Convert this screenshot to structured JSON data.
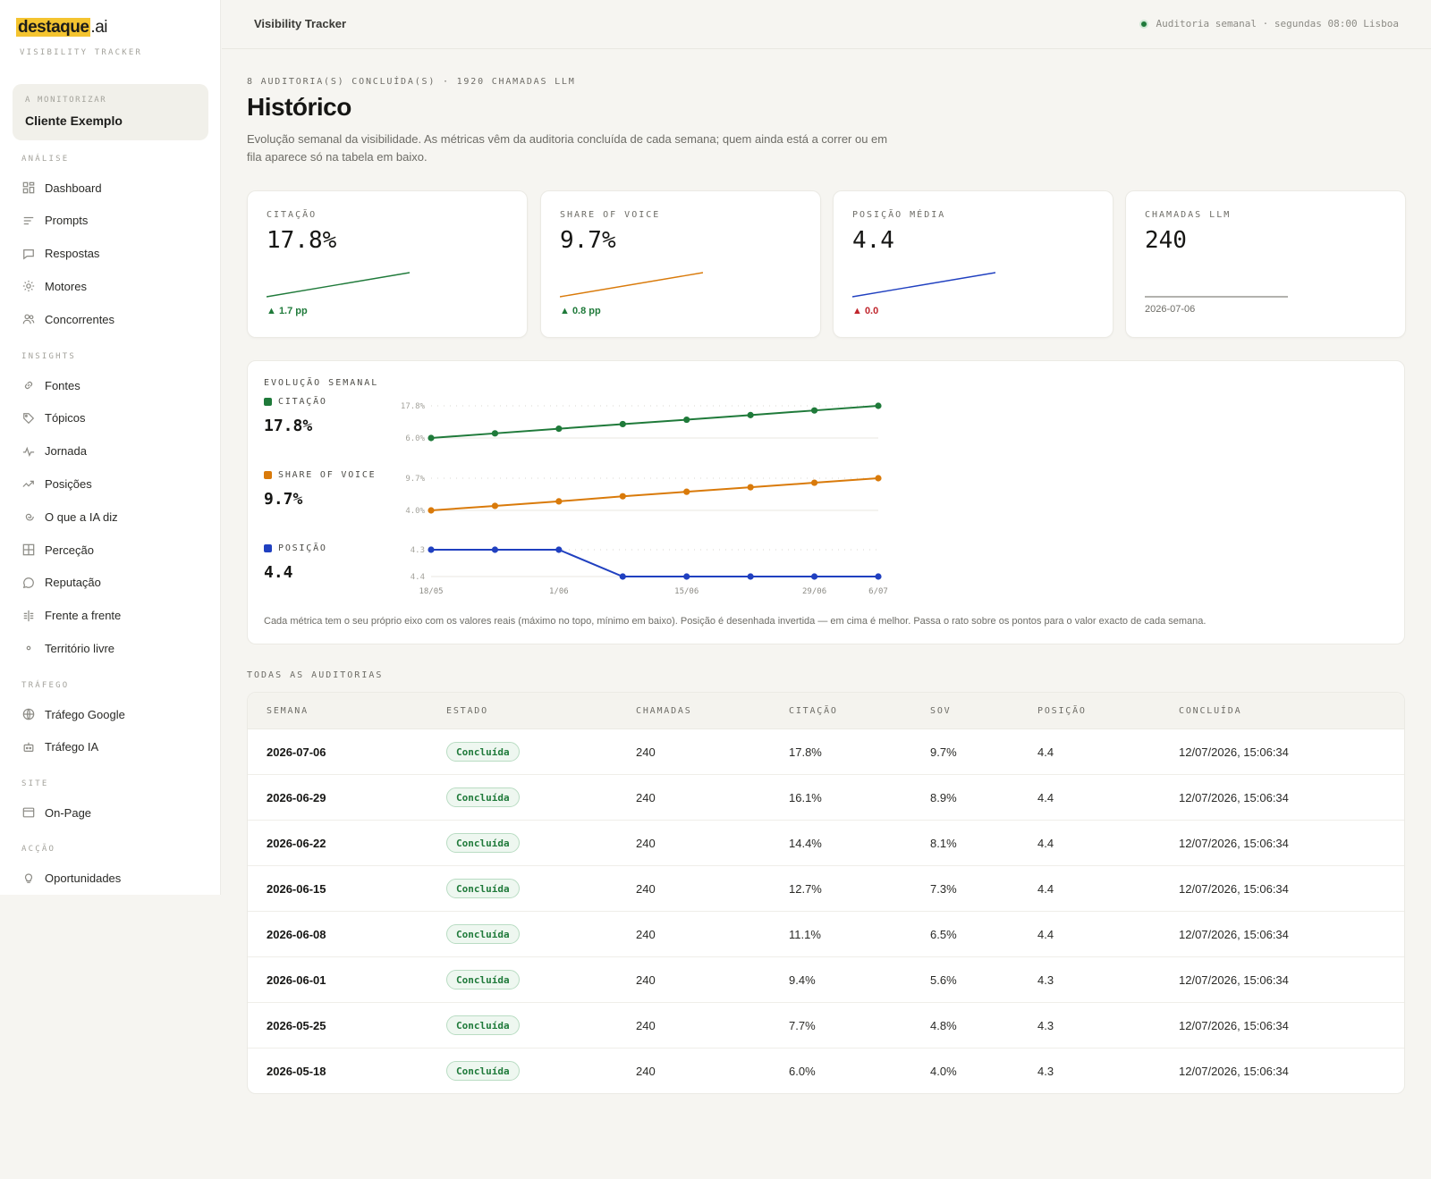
{
  "brand": {
    "name_highlight": "destaque",
    "name_tld": ".ai",
    "subtitle": "VISIBILITY TRACKER"
  },
  "client": {
    "label": "A MONITORIZAR",
    "name": "Cliente Exemplo"
  },
  "sidebar": {
    "sections": [
      {
        "title": "ANÁLISE",
        "items": [
          {
            "label": "Dashboard",
            "icon": "dashboard-icon"
          },
          {
            "label": "Prompts",
            "icon": "lines-icon"
          },
          {
            "label": "Respostas",
            "icon": "chat-icon"
          },
          {
            "label": "Motores",
            "icon": "sun-icon"
          },
          {
            "label": "Concorrentes",
            "icon": "users-icon"
          }
        ]
      },
      {
        "title": "INSIGHTS",
        "items": [
          {
            "label": "Fontes",
            "icon": "link-icon"
          },
          {
            "label": "Tópicos",
            "icon": "tag-icon"
          },
          {
            "label": "Jornada",
            "icon": "pulse-icon"
          },
          {
            "label": "Posições",
            "icon": "trend-icon"
          },
          {
            "label": "O que a IA diz",
            "icon": "spiral-icon"
          },
          {
            "label": "Perceção",
            "icon": "grid-icon"
          },
          {
            "label": "Reputação",
            "icon": "bubble-icon"
          },
          {
            "label": "Frente a frente",
            "icon": "versus-icon"
          },
          {
            "label": "Território livre",
            "icon": "dot-icon"
          }
        ]
      },
      {
        "title": "TRÁFEGO",
        "items": [
          {
            "label": "Tráfego Google",
            "icon": "globe-icon"
          },
          {
            "label": "Tráfego IA",
            "icon": "bot-icon"
          }
        ]
      },
      {
        "title": "SITE",
        "items": [
          {
            "label": "On-Page",
            "icon": "window-icon"
          }
        ]
      },
      {
        "title": "ACÇÃO",
        "items": [
          {
            "label": "Oportunidades",
            "icon": "bulb-icon"
          }
        ]
      }
    ]
  },
  "topbar": {
    "title": "Visibility Tracker",
    "status": "Auditoria semanal · segundas 08:00 Lisboa"
  },
  "header": {
    "eyebrow": "8 AUDITORIA(S) CONCLUÍDA(S) · 1920 CHAMADAS LLM",
    "title": "Histórico",
    "intro": "Evolução semanal da visibilidade. As métricas vêm da auditoria concluída de cada semana; quem ainda está a correr ou em fila aparece só na tabela em baixo."
  },
  "kpis": [
    {
      "label": "CITAÇÃO",
      "value": "17.8%",
      "delta": "▲ 1.7 pp",
      "color": "#1f7a3a",
      "delta_color": "#1f7a3a",
      "trend": "up"
    },
    {
      "label": "SHARE OF VOICE",
      "value": "9.7%",
      "delta": "▲ 0.8 pp",
      "color": "#d97a0a",
      "delta_color": "#1f7a3a",
      "trend": "up"
    },
    {
      "label": "POSIÇÃO MÉDIA",
      "value": "4.4",
      "delta": "▲ 0.0",
      "color": "#2040c0",
      "delta_color": "#c0262d",
      "trend": "up"
    },
    {
      "label": "CHAMADAS LLM",
      "value": "240",
      "date": "2026-07-06",
      "color": "#9a9993",
      "trend": "flat"
    }
  ],
  "evolution": {
    "title": "EVOLUÇÃO SEMANAL",
    "note": "Cada métrica tem o seu próprio eixo com os valores reais (máximo no topo, mínimo em baixo). Posição é desenhada invertida — em cima é melhor. Passa o rato sobre os pontos para o valor exacto de cada semana.",
    "series": [
      {
        "label": "CITAÇÃO",
        "value": "17.8%",
        "color": "#1f7a3a"
      },
      {
        "label": "SHARE OF VOICE",
        "value": "9.7%",
        "color": "#d97a0a"
      },
      {
        "label": "POSIÇÃO",
        "value": "4.4",
        "color": "#2040c0"
      }
    ]
  },
  "chart_data": {
    "type": "line",
    "x": [
      "18/05",
      "25/05",
      "1/06",
      "8/06",
      "15/06",
      "22/06",
      "29/06",
      "6/07"
    ],
    "x_tick_labels": [
      "18/05",
      "1/06",
      "15/06",
      "29/06",
      "6/07"
    ],
    "series": [
      {
        "name": "CITAÇÃO",
        "values": [
          6.0,
          7.7,
          9.4,
          11.1,
          12.7,
          14.4,
          16.1,
          17.8
        ],
        "axis_max_label": "17.8%",
        "axis_min_label": "6.0%",
        "ylim": [
          6.0,
          17.8
        ]
      },
      {
        "name": "SHARE OF VOICE",
        "values": [
          4.0,
          4.8,
          5.6,
          6.5,
          7.3,
          8.1,
          8.9,
          9.7
        ],
        "axis_max_label": "9.7%",
        "axis_min_label": "4.0%",
        "ylim": [
          4.0,
          9.7
        ]
      },
      {
        "name": "POSIÇÃO",
        "values": [
          4.3,
          4.3,
          4.3,
          4.4,
          4.4,
          4.4,
          4.4,
          4.4
        ],
        "axis_max_label": "4.3",
        "axis_min_label": "4.4",
        "ylim": [
          4.3,
          4.4
        ],
        "inverted": true
      }
    ],
    "grid": true
  },
  "table": {
    "title": "TODAS AS AUDITORIAS",
    "columns": [
      "SEMANA",
      "ESTADO",
      "CHAMADAS",
      "CITAÇÃO",
      "SOV",
      "POSIÇÃO",
      "CONCLUÍDA"
    ],
    "rows": [
      [
        "2026-07-06",
        "Concluída",
        "240",
        "17.8%",
        "9.7%",
        "4.4",
        "12/07/2026, 15:06:34"
      ],
      [
        "2026-06-29",
        "Concluída",
        "240",
        "16.1%",
        "8.9%",
        "4.4",
        "12/07/2026, 15:06:34"
      ],
      [
        "2026-06-22",
        "Concluída",
        "240",
        "14.4%",
        "8.1%",
        "4.4",
        "12/07/2026, 15:06:34"
      ],
      [
        "2026-06-15",
        "Concluída",
        "240",
        "12.7%",
        "7.3%",
        "4.4",
        "12/07/2026, 15:06:34"
      ],
      [
        "2026-06-08",
        "Concluída",
        "240",
        "11.1%",
        "6.5%",
        "4.4",
        "12/07/2026, 15:06:34"
      ],
      [
        "2026-06-01",
        "Concluída",
        "240",
        "9.4%",
        "5.6%",
        "4.3",
        "12/07/2026, 15:06:34"
      ],
      [
        "2026-05-25",
        "Concluída",
        "240",
        "7.7%",
        "4.8%",
        "4.3",
        "12/07/2026, 15:06:34"
      ],
      [
        "2026-05-18",
        "Concluída",
        "240",
        "6.0%",
        "4.0%",
        "4.3",
        "12/07/2026, 15:06:34"
      ]
    ]
  }
}
